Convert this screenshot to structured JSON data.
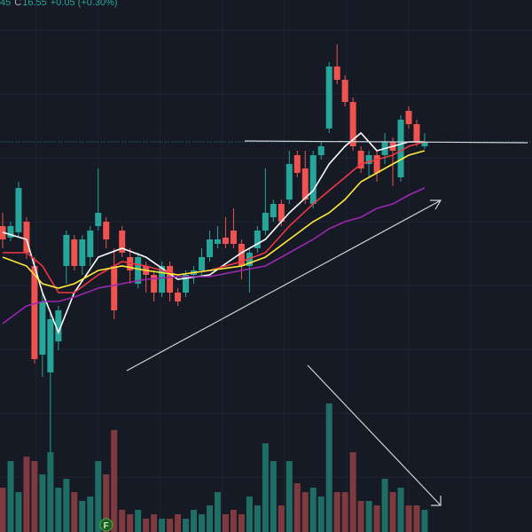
{
  "header": {
    "fragment": "45",
    "close_label": "C",
    "close": "16.55",
    "change": "+0.05 (+0.30%)"
  },
  "chart_data": {
    "type": "candlestick",
    "up_color": "#26a69a",
    "down_color": "#ef5350",
    "up_volume_color": "#1f6e66",
    "down_volume_color": "#7f3a40",
    "ylim": [
      12.15,
      18.15
    ],
    "vlim": [
      0,
      200
    ],
    "open": [
      15.6,
      15.47,
      15.53,
      15.65,
      15.15,
      14.15,
      13.95,
      14.3,
      15.15,
      15.45,
      15.15,
      15.25,
      15.6,
      15.65,
      15.15,
      15.55,
      15.25,
      14.95,
      15.15,
      15.05,
      14.85,
      15.15,
      14.85,
      14.85,
      15.05,
      15.1,
      15.25,
      15.4,
      15.47,
      15.55,
      15.4,
      15.15,
      15.35,
      15.55,
      15.7,
      15.85,
      15.9,
      16.4,
      16.25,
      15.85,
      16.4,
      16.7,
      17.4,
      17.25,
      17.0,
      16.45,
      16.3,
      16.4,
      16.4,
      16.55,
      16.15,
      16.9,
      16.75,
      16.5
    ],
    "high": [
      15.75,
      15.65,
      16.1,
      15.7,
      15.25,
      14.85,
      14.65,
      14.7,
      15.55,
      15.5,
      15.5,
      15.6,
      16.25,
      15.7,
      15.35,
      15.6,
      15.35,
      15.3,
      15.2,
      15.1,
      15.2,
      15.2,
      14.9,
      15.1,
      15.15,
      15.35,
      15.55,
      15.6,
      15.7,
      15.8,
      15.45,
      15.35,
      15.6,
      16.25,
      15.9,
      15.9,
      16.45,
      16.45,
      16.45,
      16.45,
      16.55,
      17.45,
      17.65,
      17.3,
      17.05,
      16.5,
      16.45,
      16.45,
      16.65,
      16.6,
      16.85,
      16.95,
      16.8,
      16.65
    ],
    "low": [
      15.35,
      15.43,
      15.47,
      15.23,
      14.05,
      13.9,
      13.05,
      14.2,
      14.95,
      15.1,
      15.05,
      15.15,
      15.55,
      15.35,
      14.55,
      15.25,
      14.95,
      14.9,
      14.85,
      14.75,
      14.8,
      14.75,
      14.7,
      14.8,
      14.95,
      15.05,
      15.2,
      15.35,
      15.35,
      15.35,
      15.0,
      14.85,
      15.3,
      15.5,
      15.65,
      15.6,
      15.85,
      16.15,
      15.85,
      15.8,
      16.35,
      16.65,
      17.2,
      16.95,
      16.45,
      16.2,
      16.15,
      16.1,
      16.3,
      16.05,
      16.1,
      16.7,
      16.5,
      16.47
    ],
    "close": [
      15.45,
      15.6,
      16.03,
      15.3,
      14.1,
      14.75,
      14.55,
      14.65,
      15.5,
      15.15,
      15.45,
      15.55,
      15.75,
      15.45,
      14.65,
      15.3,
      15.1,
      15.25,
      15.05,
      14.85,
      15.15,
      14.85,
      14.75,
      15.05,
      15.1,
      15.25,
      15.45,
      15.45,
      15.4,
      15.4,
      15.15,
      15.3,
      15.55,
      15.75,
      15.85,
      15.65,
      16.3,
      16.2,
      15.9,
      16.4,
      16.5,
      17.4,
      17.25,
      17.0,
      16.5,
      16.25,
      16.4,
      16.2,
      16.55,
      16.45,
      16.8,
      16.75,
      16.55,
      16.55
    ],
    "volume": [
      50,
      80,
      45,
      85,
      80,
      65,
      90,
      50,
      60,
      45,
      35,
      40,
      80,
      65,
      115,
      25,
      20,
      25,
      15,
      20,
      15,
      15,
      20,
      15,
      25,
      20,
      30,
      45,
      20,
      25,
      20,
      40,
      30,
      100,
      80,
      30,
      80,
      55,
      45,
      50,
      40,
      145,
      45,
      45,
      90,
      35,
      35,
      30,
      60,
      45,
      50,
      30,
      30,
      25
    ],
    "series": [
      {
        "color": "#ffffff",
        "x": [
          0,
          3,
          5,
          7,
          9,
          12,
          15,
          18,
          22,
          26,
          30,
          33,
          36,
          39,
          41,
          43,
          45,
          47,
          49,
          51,
          53
        ],
        "values": [
          15.53,
          15.45,
          14.85,
          14.4,
          14.85,
          15.25,
          15.35,
          15.25,
          15.0,
          15.05,
          15.3,
          15.45,
          15.75,
          16.0,
          16.3,
          16.5,
          16.65,
          16.45,
          16.5,
          16.55,
          16.55
        ]
      },
      {
        "color": "#f23645",
        "x": [
          0,
          3,
          5,
          7,
          9,
          12,
          15,
          18,
          22,
          26,
          30,
          33,
          36,
          39,
          41,
          43,
          45,
          47,
          49,
          51,
          53
        ],
        "values": [
          15.3,
          15.3,
          15.15,
          14.85,
          14.85,
          15.05,
          15.2,
          15.15,
          15.05,
          15.1,
          15.2,
          15.3,
          15.6,
          15.85,
          16.0,
          16.15,
          16.3,
          16.35,
          16.4,
          16.5,
          16.55
        ]
      },
      {
        "color": "#ffeb3b",
        "x": [
          0,
          3,
          5,
          7,
          9,
          12,
          15,
          18,
          22,
          26,
          30,
          33,
          36,
          39,
          41,
          43,
          45,
          47,
          49,
          51,
          53
        ],
        "values": [
          15.25,
          15.15,
          14.95,
          14.9,
          14.95,
          15.1,
          15.15,
          15.1,
          15.05,
          15.1,
          15.15,
          15.25,
          15.45,
          15.65,
          15.75,
          15.9,
          16.1,
          16.2,
          16.3,
          16.4,
          16.45
        ]
      },
      {
        "color": "#9c27b0",
        "x": [
          0,
          3,
          5,
          7,
          9,
          12,
          15,
          18,
          22,
          26,
          30,
          33,
          36,
          39,
          41,
          43,
          45,
          47,
          49,
          51,
          53
        ],
        "values": [
          14.5,
          14.7,
          14.75,
          14.75,
          14.8,
          14.9,
          14.95,
          15.0,
          15.03,
          15.03,
          15.1,
          15.15,
          15.3,
          15.45,
          15.57,
          15.65,
          15.7,
          15.8,
          15.85,
          15.95,
          16.03
        ]
      }
    ],
    "marker": "F",
    "marker_index": 13
  }
}
